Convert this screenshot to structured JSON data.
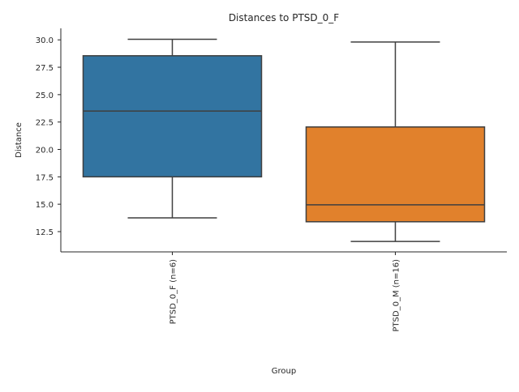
{
  "chart_data": {
    "type": "box",
    "title": "Distances to PTSD_0_F",
    "xlabel": "Group",
    "ylabel": "Distance",
    "ylim": [
      10.65,
      31.05
    ],
    "yticks": [
      "12.5",
      "15.0",
      "17.5",
      "20.0",
      "22.5",
      "25.0",
      "27.5",
      "30.0"
    ],
    "grid": false,
    "categories": [
      "PTSD_0_F (n=6)",
      "PTSD_0_M (n=16)"
    ],
    "boxes": [
      {
        "name": "PTSD_0_F (n=6)",
        "whisker_low": 13.75,
        "q1": 17.5,
        "median": 23.5,
        "q3": 28.55,
        "whisker_high": 30.05,
        "color": "#3274a1"
      },
      {
        "name": "PTSD_0_M (n=16)",
        "whisker_low": 11.6,
        "q1": 13.4,
        "median": 14.95,
        "q3": 22.05,
        "whisker_high": 29.8,
        "color": "#e1812c"
      }
    ]
  }
}
